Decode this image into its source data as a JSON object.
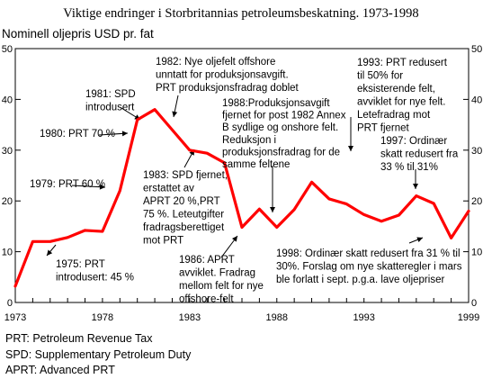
{
  "chart_data": {
    "type": "line",
    "title": "Viktige endringer i Storbritannias petroleumsbeskatning. 1973-1998",
    "ylabel": "Nominell oljepris USD pr. fat",
    "ylim": [
      0,
      50
    ],
    "xlim": [
      1973,
      1999
    ],
    "y_ticks": [
      "0",
      "10",
      "20",
      "30",
      "40",
      "50"
    ],
    "x_ticks": [
      "1973",
      "1978",
      "1983",
      "1988",
      "1993",
      "1999"
    ],
    "grid": false,
    "series_color": "#ff0000",
    "x": [
      1973,
      1974,
      1975,
      1976,
      1977,
      1978,
      1979,
      1980,
      1981,
      1982,
      1983,
      1984,
      1985,
      1986,
      1987,
      1988,
      1989,
      1990,
      1991,
      1992,
      1993,
      1994,
      1995,
      1996,
      1997,
      1998,
      1999
    ],
    "values": [
      3.2,
      12,
      12,
      12.8,
      14.2,
      14,
      22,
      36,
      38,
      34,
      30,
      29.4,
      27.5,
      14.8,
      18.4,
      14.8,
      18.3,
      23.7,
      20.4,
      19.4,
      17.3,
      16,
      17.2,
      21,
      19.5,
      12.7,
      18
    ]
  },
  "annotations": [
    {
      "id": "1973",
      "lines": [
        "1975: PRT",
        "introdusert: 45 %"
      ]
    },
    {
      "id": "1979",
      "lines": [
        "1979: PRT 60 %"
      ]
    },
    {
      "id": "1980",
      "lines": [
        "1980: PRT 70 %"
      ]
    },
    {
      "id": "1981",
      "lines": [
        "1981: SPD",
        "introdusert"
      ]
    },
    {
      "id": "1982",
      "lines": [
        "1982: Nye oljefelt offshore",
        "unntatt for produksjonsavgift.",
        "PRT produksjonsfradrag doblet"
      ]
    },
    {
      "id": "1983",
      "lines": [
        "1983: SPD fjernet,",
        "erstattet av",
        "APRT 20 %,PRT",
        "75 %. Leteutgifter",
        "fradragsberettiget",
        "mot PRT"
      ]
    },
    {
      "id": "1986",
      "lines": [
        "1986: APRT",
        "avviklet. Fradrag",
        "mellom felt for nye",
        "offshore-felt"
      ]
    },
    {
      "id": "1988",
      "lines": [
        "1988:Produksjonsavgift",
        "fjernet for post 1982 Annex",
        "B sydlige og onshore felt.",
        "Reduksjon i",
        "produksjonsfradrag for de",
        "samme feltene"
      ]
    },
    {
      "id": "1993",
      "lines": [
        "1993: PRT redusert",
        "til 50% for",
        "eksisterende felt,",
        "avviklet for nye felt.",
        "Letefradrag mot",
        "PRT fjernet"
      ]
    },
    {
      "id": "1997",
      "lines": [
        "1997: Ordinær",
        "skatt redusert fra",
        "33 % til 31%"
      ]
    },
    {
      "id": "1998",
      "lines": [
        "1998: Ordinær skatt redusert fra 31 % til",
        "30%. Forslag om nye skatteregler i mars",
        "ble forlatt i sept. p.g.a. lave oljepriser"
      ]
    }
  ],
  "legend": [
    "PRT: Petroleum Revenue Tax",
    "SPD: Supplementary Petroleum Duty",
    "APRT: Advanced PRT"
  ]
}
